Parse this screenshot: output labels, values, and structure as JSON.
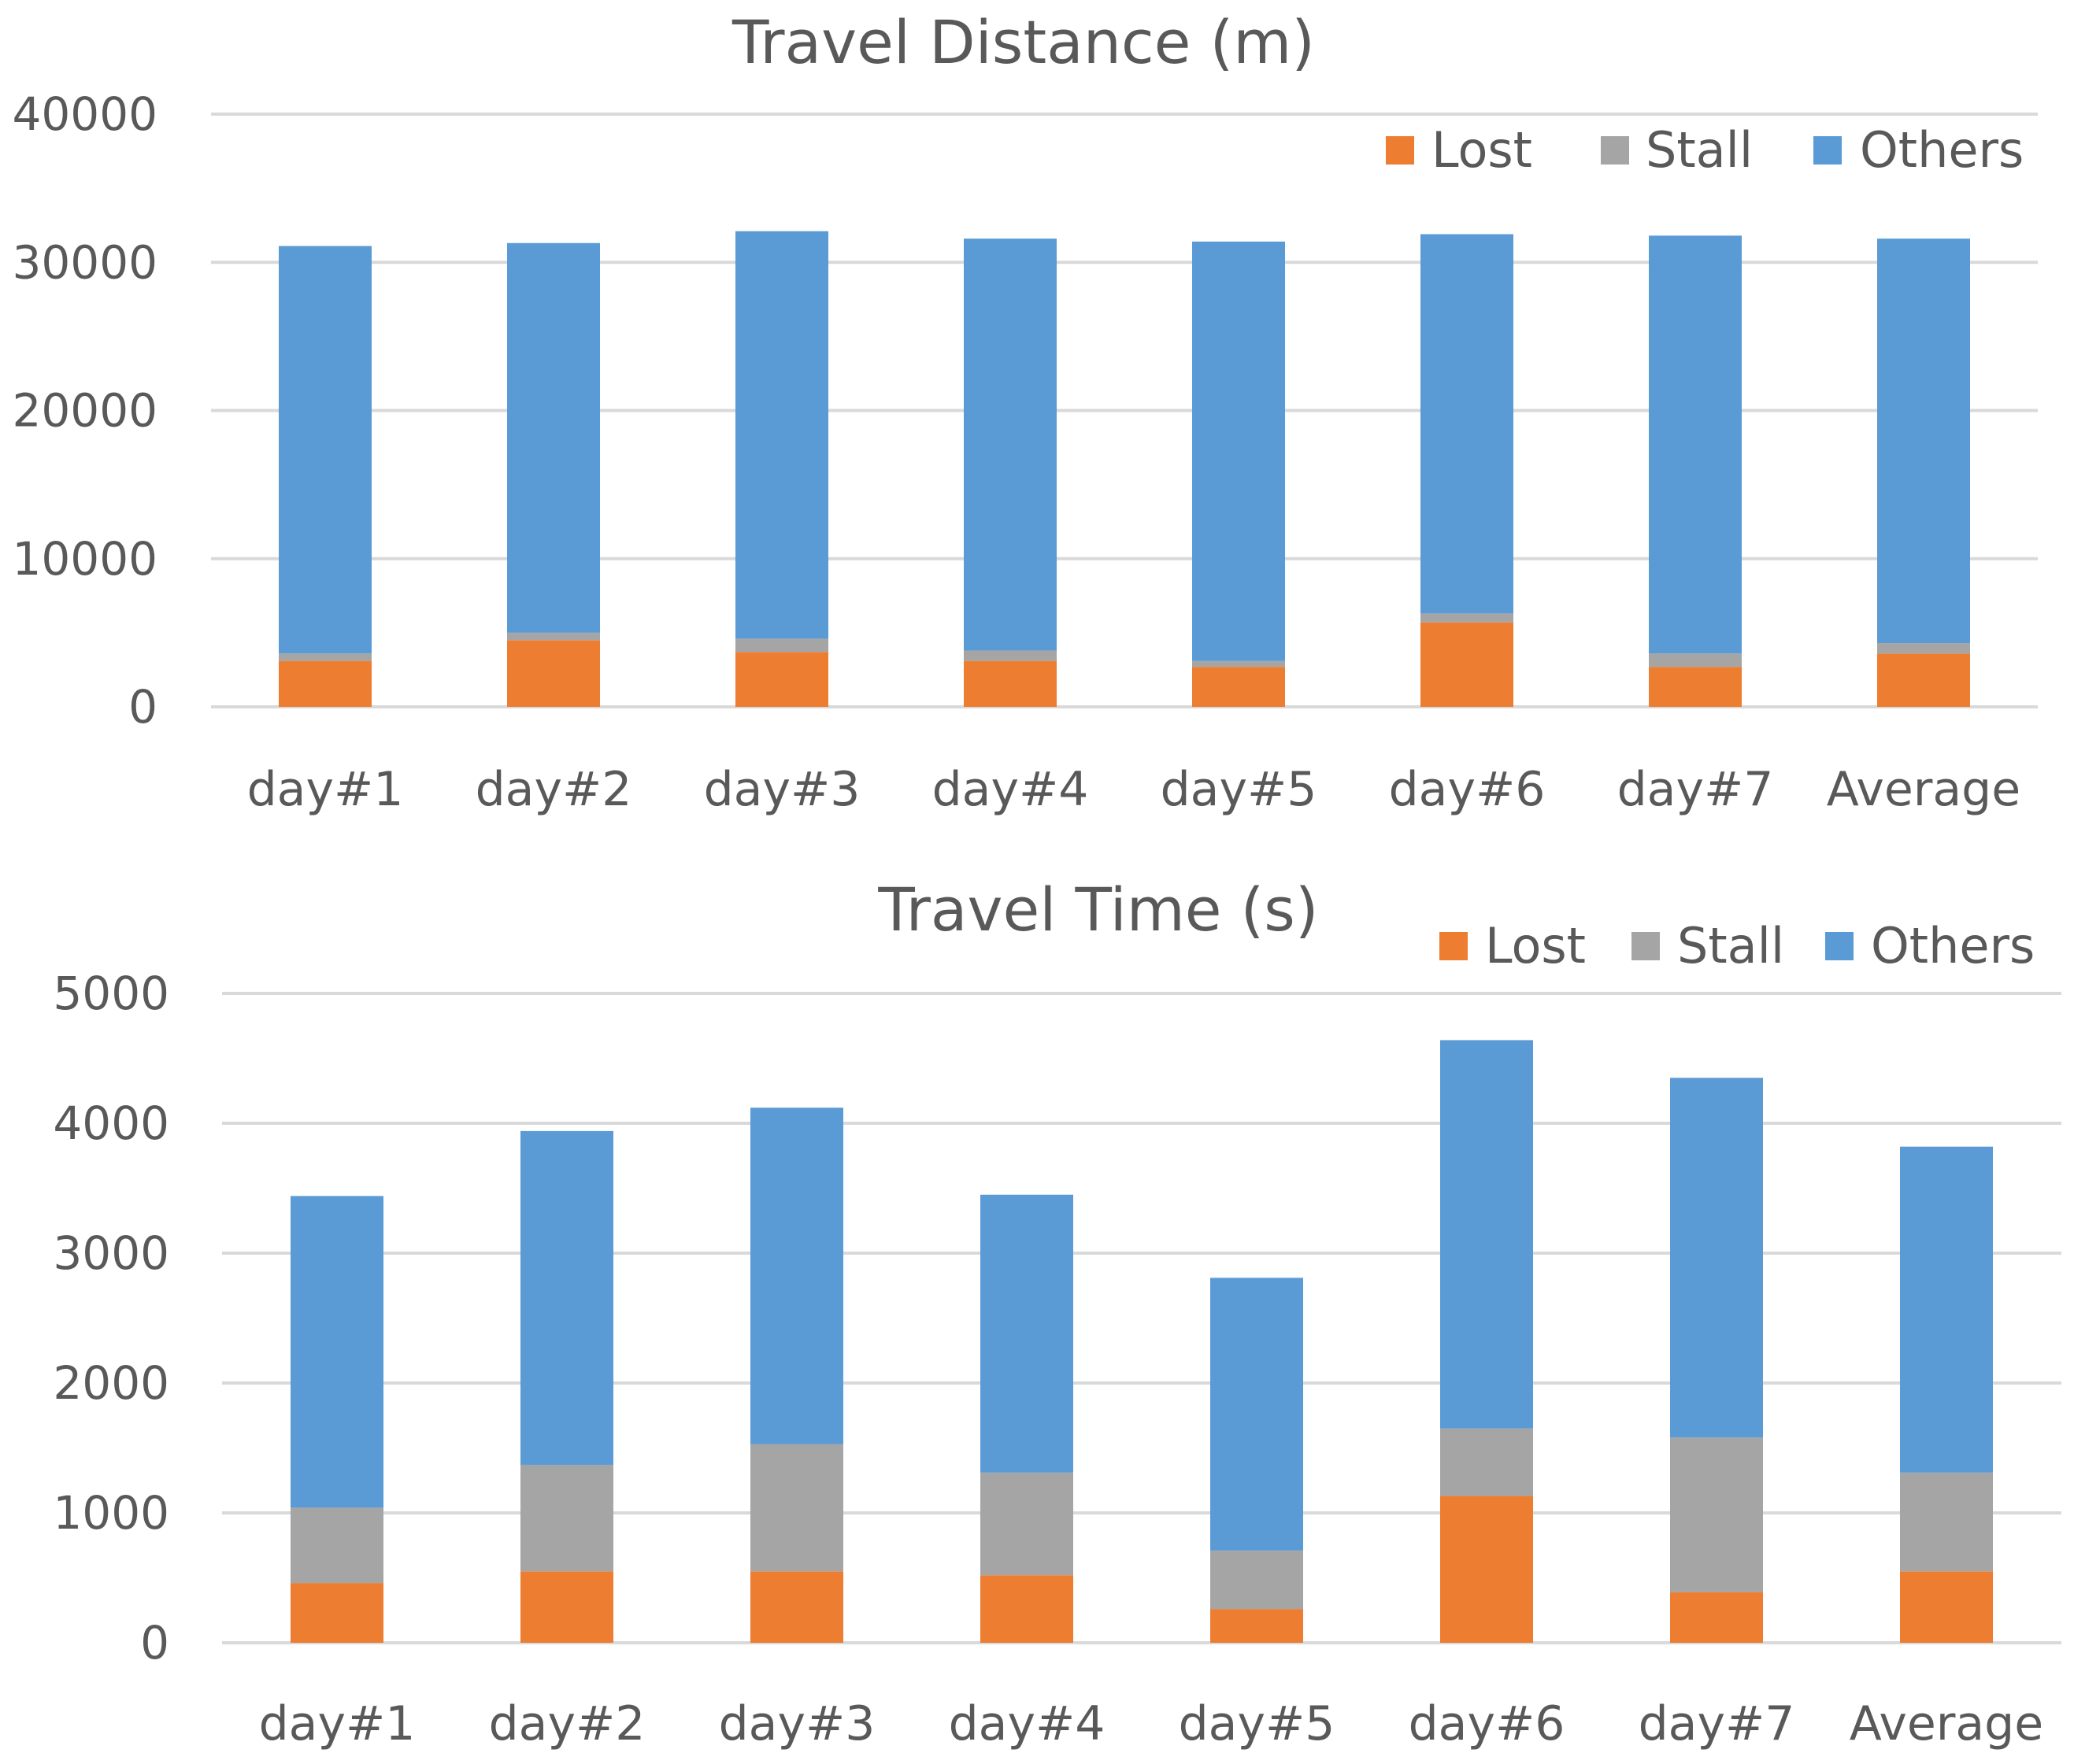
{
  "chart_data": [
    {
      "type": "bar",
      "stacked": true,
      "title": "Travel Distance (m)",
      "xlabel": "",
      "ylabel": "",
      "categories": [
        "day#1",
        "day#2",
        "day#3",
        "day#4",
        "day#5",
        "day#6",
        "day#7",
        "Average"
      ],
      "ylim": [
        0,
        40000
      ],
      "yticks": [
        "0",
        "10000",
        "20000",
        "30000",
        "40000"
      ],
      "grid": true,
      "legend_position": "top-right",
      "series": [
        {
          "name": "Lost",
          "color": "#ED7D31",
          "values": [
            3100,
            4500,
            3700,
            3100,
            2700,
            5700,
            2700,
            3600
          ]
        },
        {
          "name": "Stall",
          "color": "#A5A5A5",
          "values": [
            500,
            500,
            900,
            700,
            400,
            600,
            900,
            700
          ]
        },
        {
          "name": "Others",
          "color": "#5B9BD5",
          "values": [
            27500,
            26300,
            27500,
            27800,
            28300,
            25600,
            28200,
            27300
          ]
        }
      ]
    },
    {
      "type": "bar",
      "stacked": true,
      "title": "Travel Time (s)",
      "xlabel": "",
      "ylabel": "",
      "categories": [
        "day#1",
        "day#2",
        "day#3",
        "day#4",
        "day#5",
        "day#6",
        "day#7",
        "Average"
      ],
      "ylim": [
        0,
        5000
      ],
      "yticks": [
        "0",
        "1000",
        "2000",
        "3000",
        "4000",
        "5000"
      ],
      "grid": true,
      "legend_position": "top-right",
      "series": [
        {
          "name": "Lost",
          "color": "#ED7D31",
          "values": [
            460,
            550,
            550,
            520,
            260,
            1130,
            390,
            550
          ]
        },
        {
          "name": "Stall",
          "color": "#A5A5A5",
          "values": [
            580,
            820,
            980,
            790,
            450,
            520,
            1190,
            760
          ]
        },
        {
          "name": "Others",
          "color": "#5B9BD5",
          "values": [
            2400,
            2570,
            2590,
            2140,
            2100,
            2990,
            2770,
            2510
          ]
        }
      ]
    }
  ]
}
